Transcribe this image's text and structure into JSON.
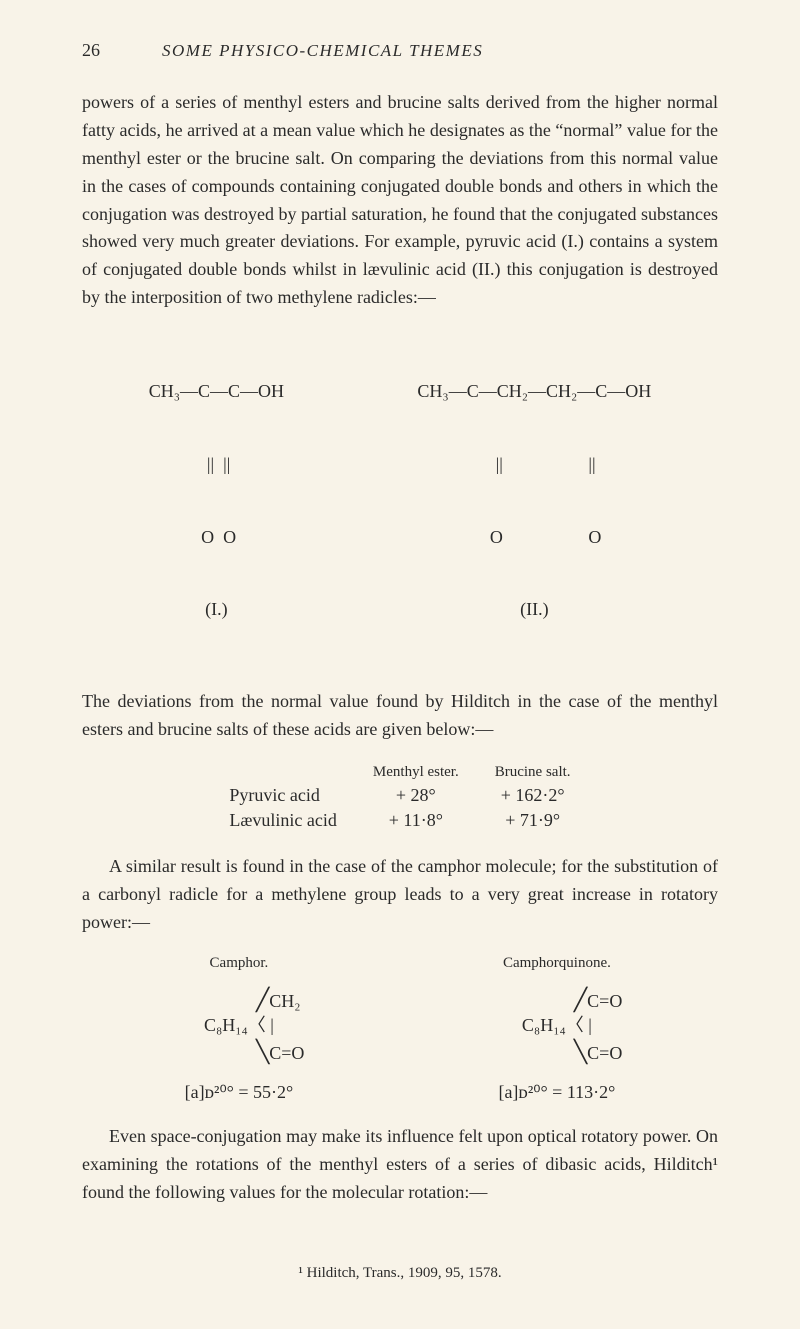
{
  "page_number": "26",
  "running_title": "SOME PHYSICO-CHEMICAL THEMES",
  "para1": "powers of a series of menthyl esters and brucine salts derived from the higher normal fatty acids, he arrived at a mean value which he designates as the “normal” value for the menthyl ester or the brucine salt. On comparing the deviations from this normal value in the cases of compounds containing conjugated double bonds and others in which the conjugation was destroyed by partial saturation, he found that the conjugated substances showed very much greater deviations. For example, pyruvic acid (I.) contains a system of conjugated double bonds whilst in lævulinic acid (II.) this conjugation is destroyed by the interposition of two methylene radicles:—",
  "chem1": {
    "formula_line1": "CH₃—C—C—OH",
    "formula_line2": " ||  ||",
    "formula_line3": " O  O",
    "label": "(I.)"
  },
  "chem2": {
    "formula_line1": "CH₃—C—CH₂—CH₂—C—OH",
    "formula_line2": "     ||                   ||",
    "formula_line3": "     O                   O",
    "label": "(II.)"
  },
  "para2": "The deviations from the normal value found by Hilditch in the case of the menthyl esters and brucine salts of these acids are given below:—",
  "table1": {
    "headers": [
      "",
      "Menthyl ester.",
      "Brucine salt."
    ],
    "rows": [
      [
        "Pyruvic acid",
        "+ 28°",
        "+ 162·2°"
      ],
      [
        "Lævulinic acid",
        "+ 11·8°",
        "+ 71·9°"
      ]
    ]
  },
  "para3": "A similar result is found in the case of the camphor molecule; for the substitution of a carbonyl radicle for a methylene group leads to a very great increase in rotatory power:—",
  "camphor": {
    "left_title": "Camphor.",
    "right_title": "Camphorquinone.",
    "left_base": "C₈H₁₄",
    "left_upper": "CH₂",
    "left_lower": "C=O",
    "right_base": "C₈H₁₄",
    "right_upper": "C=O",
    "right_lower": "C=O",
    "left_rot": "[a]ᴅ²⁰° = 55·2°",
    "right_rot": "[a]ᴅ²⁰° = 113·2°"
  },
  "para4": "Even space-conjugation may make its influence felt upon optical rotatory power. On examining the rotations of the menthyl esters of a series of dibasic acids, Hilditch¹ found the following values for the molecular rotation:—",
  "footnote": "¹ Hilditch, Trans., 1909, 95, 1578."
}
